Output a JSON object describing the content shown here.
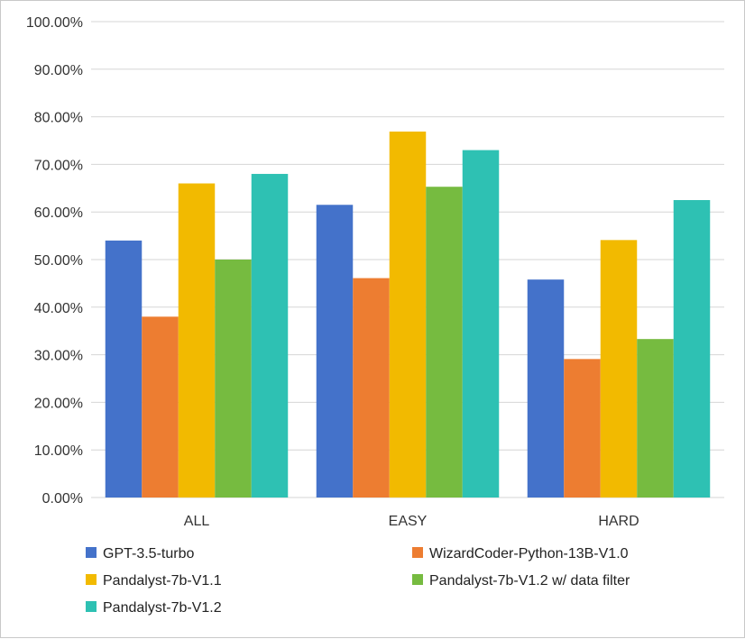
{
  "chart_data": {
    "type": "bar",
    "title": "",
    "xlabel": "",
    "ylabel": "",
    "categories": [
      "ALL",
      "EASY",
      "HARD"
    ],
    "ylim": [
      0,
      100
    ],
    "y_ticks": [
      "0.00%",
      "10.00%",
      "20.00%",
      "30.00%",
      "40.00%",
      "50.00%",
      "60.00%",
      "70.00%",
      "80.00%",
      "90.00%",
      "100.00%"
    ],
    "grid": true,
    "legend_position": "bottom",
    "series": [
      {
        "name": "GPT-3.5-turbo",
        "color": "#4472CA",
        "values": [
          54.0,
          61.5,
          45.8
        ]
      },
      {
        "name": "WizardCoder-Python-13B-V1.0",
        "color": "#ED7D31",
        "values": [
          38.0,
          46.1,
          29.1
        ]
      },
      {
        "name": "Pandalyst-7b-V1.1",
        "color": "#F2BA00",
        "values": [
          66.0,
          76.9,
          54.1
        ]
      },
      {
        "name": "Pandalyst-7b-V1.2 w/ data filter",
        "color": "#76BB40",
        "values": [
          50.0,
          65.3,
          33.3
        ]
      },
      {
        "name": "Pandalyst-7b-V1.2",
        "color": "#2EC1B3",
        "values": [
          68.0,
          73.0,
          62.5
        ]
      }
    ]
  }
}
